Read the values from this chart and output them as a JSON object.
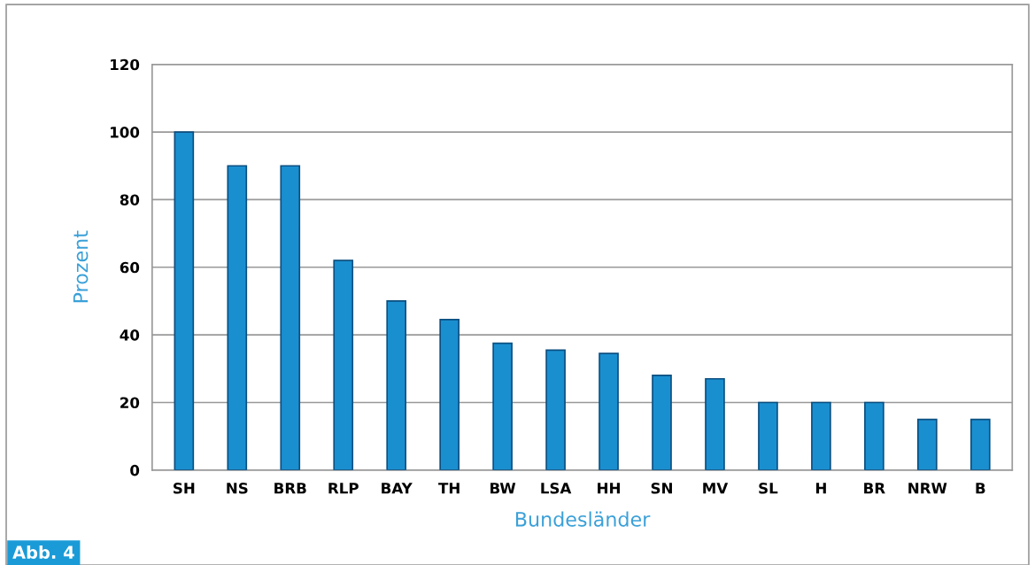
{
  "chart_data": {
    "type": "bar",
    "xlabel": "Bundesländer",
    "ylabel": "Prozent",
    "categories": [
      "SH",
      "NS",
      "BRB",
      "RLP",
      "BAY",
      "TH",
      "BW",
      "LSA",
      "HH",
      "SN",
      "MV",
      "SL",
      "H",
      "BR",
      "NRW",
      "B"
    ],
    "values": [
      100,
      90,
      90,
      62,
      50,
      44.5,
      37.5,
      35.5,
      34.5,
      28,
      27,
      20,
      20,
      20,
      15,
      15
    ],
    "color": "#1a8fd0",
    "ylim": [
      0,
      120
    ],
    "yticks": [
      0,
      20,
      40,
      60,
      80,
      100,
      120
    ],
    "grid": "y",
    "annotations": [
      "Abb. 4"
    ]
  }
}
